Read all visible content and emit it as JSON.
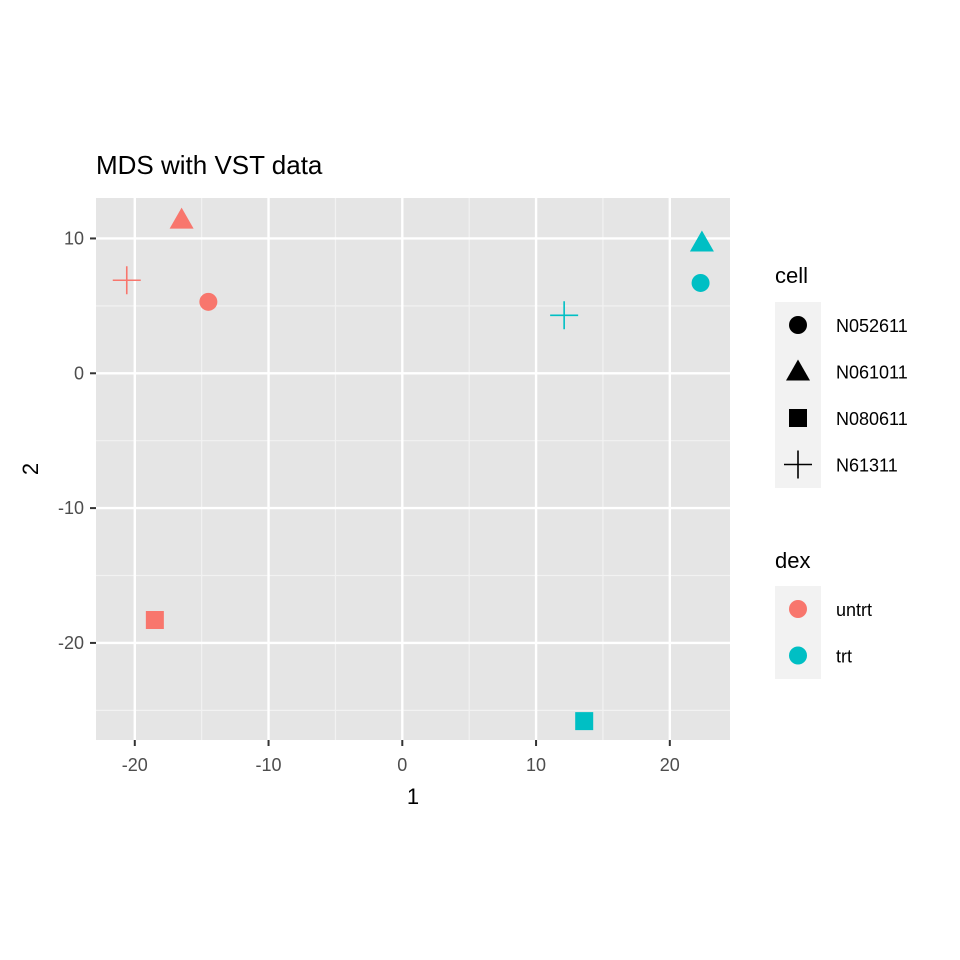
{
  "chart_data": {
    "type": "scatter",
    "title": "MDS with VST data",
    "xlabel": "1",
    "ylabel": "2",
    "xlim": [
      -22.9,
      24.5
    ],
    "ylim": [
      -27.2,
      13.0
    ],
    "x_ticks": [
      -20,
      -10,
      0,
      10,
      20
    ],
    "y_ticks": [
      -20,
      -10,
      0,
      10
    ],
    "x_tick_labels": [
      "-20",
      "-10",
      "0",
      "10",
      "20"
    ],
    "y_tick_labels": [
      "-20",
      "-10",
      "0",
      "10"
    ],
    "grid": true,
    "background": "#e5e5e5",
    "points": [
      {
        "x": -14.5,
        "y": 5.3,
        "cell": "N052611",
        "dex": "untrt"
      },
      {
        "x": -16.5,
        "y": 11.4,
        "cell": "N061011",
        "dex": "untrt"
      },
      {
        "x": -18.5,
        "y": -18.3,
        "cell": "N080611",
        "dex": "untrt"
      },
      {
        "x": -20.6,
        "y": 6.9,
        "cell": "N61311",
        "dex": "untrt"
      },
      {
        "x": 22.3,
        "y": 6.7,
        "cell": "N052611",
        "dex": "trt"
      },
      {
        "x": 22.4,
        "y": 9.7,
        "cell": "N061011",
        "dex": "trt"
      },
      {
        "x": 13.6,
        "y": -25.8,
        "cell": "N080611",
        "dex": "trt"
      },
      {
        "x": 12.1,
        "y": 4.3,
        "cell": "N61311",
        "dex": "trt"
      }
    ],
    "legends": {
      "cell": {
        "title": "cell",
        "items": [
          {
            "label": "N052611",
            "shape": "circle"
          },
          {
            "label": "N061011",
            "shape": "triangle"
          },
          {
            "label": "N080611",
            "shape": "square"
          },
          {
            "label": "N61311",
            "shape": "plus"
          }
        ]
      },
      "dex": {
        "title": "dex",
        "items": [
          {
            "label": "untrt",
            "color": "#F8766D"
          },
          {
            "label": "trt",
            "color": "#00BFC4"
          }
        ]
      }
    },
    "legend_placement": "right"
  }
}
